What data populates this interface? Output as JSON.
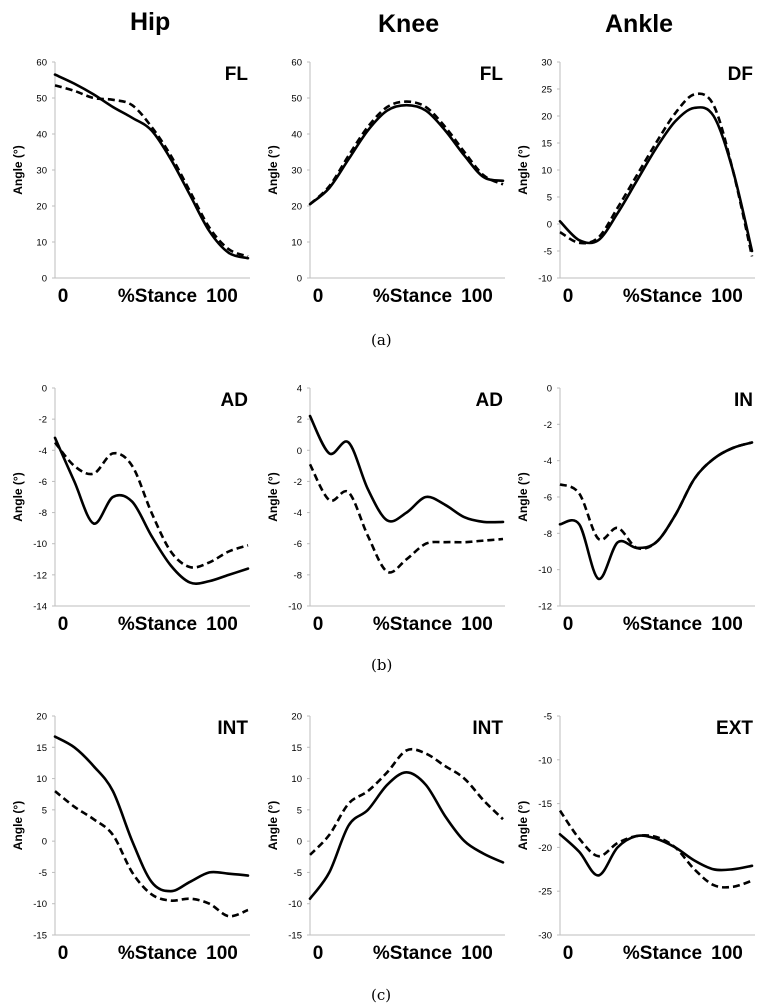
{
  "column_titles": [
    "Hip",
    "Knee",
    "Ankle"
  ],
  "captions": [
    "(a)",
    "(b)",
    "(c)"
  ],
  "chart_data": [
    {
      "type": "line",
      "panel_label": "FL",
      "ylabel": "Angle (°)",
      "xtick_labels": [
        "0",
        "%Stance",
        "100"
      ],
      "x": [
        0,
        10,
        20,
        30,
        40,
        50,
        60,
        70,
        80,
        90,
        100
      ],
      "ylim": [
        0,
        60
      ],
      "yticks": [
        0,
        10,
        20,
        30,
        40,
        50,
        60
      ],
      "series": [
        {
          "values": [
            56.5,
            54,
            51,
            47.5,
            44.5,
            41,
            33,
            23,
            13,
            7,
            5.5
          ],
          "style": "solid"
        },
        {
          "values": [
            53.5,
            52,
            50,
            49.5,
            48,
            42,
            34,
            24,
            14,
            8,
            6
          ],
          "style": "dashed"
        }
      ]
    },
    {
      "type": "line",
      "panel_label": "FL",
      "ylabel": "Angle (°)",
      "xtick_labels": [
        "0",
        "%Stance",
        "100"
      ],
      "x": [
        0,
        10,
        20,
        30,
        40,
        50,
        60,
        70,
        80,
        90,
        100
      ],
      "ylim": [
        0,
        60
      ],
      "yticks": [
        0,
        10,
        20,
        30,
        40,
        50,
        60
      ],
      "series": [
        {
          "values": [
            20.5,
            25,
            33,
            41,
            46.5,
            48,
            46.5,
            41,
            34,
            28,
            27
          ],
          "style": "solid"
        },
        {
          "values": [
            20.5,
            25.5,
            34,
            42,
            47.5,
            49,
            47.5,
            42,
            35,
            28.5,
            26
          ],
          "style": "dashed"
        }
      ]
    },
    {
      "type": "line",
      "panel_label": "DF",
      "ylabel": "Angle (°)",
      "xtick_labels": [
        "0",
        "%Stance",
        "100"
      ],
      "x": [
        0,
        10,
        20,
        30,
        40,
        50,
        60,
        70,
        80,
        90,
        100
      ],
      "ylim": [
        -10,
        30
      ],
      "yticks": [
        -10,
        -5,
        0,
        5,
        10,
        15,
        20,
        25,
        30
      ],
      "series": [
        {
          "values": [
            0.5,
            -3,
            -3,
            2,
            8,
            14,
            19,
            21.5,
            20,
            10,
            -5
          ],
          "style": "solid"
        },
        {
          "values": [
            -1.5,
            -3.5,
            -2.5,
            3,
            9,
            15,
            20.5,
            24,
            22,
            10,
            -6
          ],
          "style": "dashed"
        }
      ]
    },
    {
      "type": "line",
      "panel_label": "AD",
      "ylabel": "Angle (°)",
      "xtick_labels": [
        "0",
        "%Stance",
        "100"
      ],
      "x": [
        0,
        10,
        20,
        30,
        40,
        50,
        60,
        70,
        80,
        90,
        100
      ],
      "ylim": [
        -14,
        0
      ],
      "yticks": [
        -14,
        -12,
        -10,
        -8,
        -6,
        -4,
        -2,
        0
      ],
      "series": [
        {
          "values": [
            -3.2,
            -6,
            -8.7,
            -7,
            -7.3,
            -9.5,
            -11.4,
            -12.5,
            -12.4,
            -12,
            -11.6
          ],
          "style": "solid"
        },
        {
          "values": [
            -3.5,
            -5,
            -5.5,
            -4.2,
            -5,
            -8,
            -10.5,
            -11.5,
            -11.2,
            -10.5,
            -10.1
          ],
          "style": "dashed"
        }
      ]
    },
    {
      "type": "line",
      "panel_label": "AD",
      "ylabel": "Angle (°)",
      "xtick_labels": [
        "0",
        "%Stance",
        "100"
      ],
      "x": [
        0,
        10,
        20,
        30,
        40,
        50,
        60,
        70,
        80,
        90,
        100
      ],
      "ylim": [
        -10,
        4
      ],
      "yticks": [
        -10,
        -8,
        -6,
        -4,
        -2,
        0,
        2,
        4
      ],
      "series": [
        {
          "values": [
            2.2,
            -0.2,
            0.5,
            -2.5,
            -4.5,
            -4,
            -3,
            -3.5,
            -4.3,
            -4.6,
            -4.6
          ],
          "style": "solid"
        },
        {
          "values": [
            -0.9,
            -3.2,
            -2.7,
            -5.5,
            -7.8,
            -7,
            -6,
            -5.9,
            -5.9,
            -5.8,
            -5.7
          ],
          "style": "dashed"
        }
      ]
    },
    {
      "type": "line",
      "panel_label": "IN",
      "ylabel": "Angle (°)",
      "xtick_labels": [
        "0",
        "%Stance",
        "100"
      ],
      "x": [
        0,
        10,
        20,
        30,
        40,
        50,
        60,
        70,
        80,
        90,
        100
      ],
      "ylim": [
        -12,
        0
      ],
      "yticks": [
        -12,
        -10,
        -8,
        -6,
        -4,
        -2,
        0
      ],
      "series": [
        {
          "values": [
            -7.5,
            -7.5,
            -10.5,
            -8.5,
            -8.8,
            -8.5,
            -7,
            -5,
            -3.9,
            -3.3,
            -3
          ],
          "style": "solid"
        },
        {
          "values": [
            -5.3,
            -5.8,
            -8.3,
            -7.7,
            -8.8,
            -8.5,
            -7,
            -5,
            -3.9,
            -3.3,
            -3
          ],
          "style": "dashed"
        }
      ]
    },
    {
      "type": "line",
      "panel_label": "INT",
      "ylabel": "Angle (°)",
      "xtick_labels": [
        "0",
        "%Stance",
        "100"
      ],
      "x": [
        0,
        10,
        20,
        30,
        40,
        50,
        60,
        70,
        80,
        90,
        100
      ],
      "ylim": [
        -15,
        20
      ],
      "yticks": [
        -15,
        -10,
        -5,
        0,
        5,
        10,
        15,
        20
      ],
      "series": [
        {
          "values": [
            16.7,
            15,
            12,
            8,
            0,
            -6.5,
            -8,
            -6.5,
            -5,
            -5.2,
            -5.5
          ],
          "style": "solid"
        },
        {
          "values": [
            8,
            5.5,
            3.5,
            1,
            -5,
            -8.5,
            -9.5,
            -9.2,
            -10,
            -12,
            -11
          ],
          "style": "dashed"
        }
      ]
    },
    {
      "type": "line",
      "panel_label": "INT",
      "ylabel": "Angle (°)",
      "xtick_labels": [
        "0",
        "%Stance",
        "100"
      ],
      "x": [
        0,
        10,
        20,
        30,
        40,
        50,
        60,
        70,
        80,
        90,
        100
      ],
      "ylim": [
        -15,
        20
      ],
      "yticks": [
        -15,
        -10,
        -5,
        0,
        5,
        10,
        15,
        20
      ],
      "series": [
        {
          "values": [
            -9.2,
            -5,
            2.5,
            5,
            9,
            11,
            9,
            4,
            0,
            -2,
            -3.4
          ],
          "style": "solid"
        },
        {
          "values": [
            -2.2,
            1,
            6,
            8,
            11,
            14.5,
            14,
            12,
            10,
            6.5,
            3.5
          ],
          "style": "dashed"
        }
      ]
    },
    {
      "type": "line",
      "panel_label": "EXT",
      "ylabel": "Angle (°)",
      "xtick_labels": [
        "0",
        "%Stance",
        "100"
      ],
      "x": [
        0,
        10,
        20,
        30,
        40,
        50,
        60,
        70,
        80,
        90,
        100
      ],
      "ylim": [
        -30,
        -5
      ],
      "yticks": [
        -30,
        -25,
        -20,
        -15,
        -10,
        -5
      ],
      "series": [
        {
          "values": [
            -18.5,
            -20.5,
            -23.2,
            -20,
            -18.7,
            -19,
            -20,
            -21.5,
            -22.5,
            -22.5,
            -22.1
          ],
          "style": "solid"
        },
        {
          "values": [
            -15.8,
            -19,
            -21,
            -19.5,
            -18.7,
            -18.8,
            -20,
            -22.5,
            -24.3,
            -24.5,
            -23.8
          ],
          "style": "dashed"
        }
      ]
    }
  ]
}
